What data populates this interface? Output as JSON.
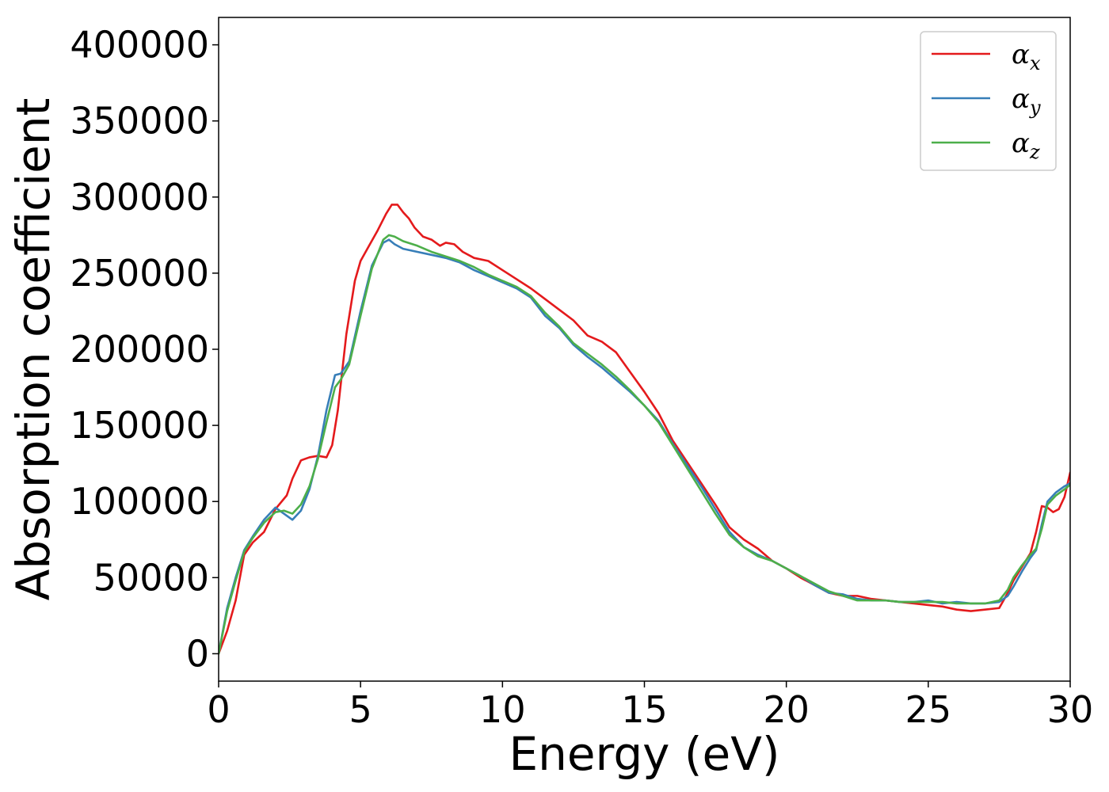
{
  "chart_data": {
    "type": "line",
    "xlabel": "Energy (eV)",
    "ylabel": "Absorption coefficient",
    "xlim": [
      0,
      30
    ],
    "ylim": [
      -18000,
      418000
    ],
    "xticks": [
      0,
      5,
      10,
      15,
      20,
      25,
      30
    ],
    "xtick_labels": [
      "0",
      "5",
      "10",
      "15",
      "20",
      "25",
      "30"
    ],
    "yticks": [
      0,
      50000,
      100000,
      150000,
      200000,
      250000,
      300000,
      350000,
      400000
    ],
    "ytick_labels": [
      "0",
      "50000",
      "100000",
      "150000",
      "200000",
      "250000",
      "300000",
      "350000",
      "400000"
    ],
    "grid": false,
    "legend_position": "top-right",
    "series": [
      {
        "name": "α_x",
        "name_base": "α",
        "name_sub": "x",
        "color": "#e41a1c",
        "x": [
          0,
          0.3,
          0.6,
          0.9,
          1.2,
          1.6,
          2.0,
          2.4,
          2.6,
          2.9,
          3.2,
          3.5,
          3.8,
          4.0,
          4.2,
          4.5,
          4.8,
          5.0,
          5.3,
          5.6,
          5.9,
          6.1,
          6.3,
          6.5,
          6.7,
          6.9,
          7.2,
          7.5,
          7.8,
          8.0,
          8.3,
          8.6,
          9.0,
          9.5,
          10.0,
          10.5,
          11.0,
          11.5,
          12.0,
          12.5,
          13.0,
          13.5,
          14.0,
          14.5,
          15.0,
          15.5,
          16.0,
          16.5,
          17.0,
          17.5,
          18.0,
          18.5,
          19.0,
          19.5,
          20.0,
          20.5,
          21.0,
          21.5,
          22.0,
          22.5,
          23.0,
          23.5,
          24.0,
          24.5,
          25.0,
          25.5,
          26.0,
          26.5,
          27.0,
          27.5,
          27.8,
          28.0,
          28.3,
          28.6,
          28.8,
          29.0,
          29.2,
          29.4,
          29.6,
          29.8,
          30.0
        ],
        "y": [
          0,
          15000,
          35000,
          65000,
          73000,
          80000,
          95000,
          104000,
          115000,
          127000,
          129000,
          130000,
          129000,
          137000,
          160000,
          210000,
          245000,
          258000,
          268000,
          278000,
          289000,
          295000,
          295000,
          290000,
          286000,
          280000,
          274000,
          272000,
          268000,
          270000,
          269000,
          264000,
          260000,
          258000,
          252000,
          246000,
          240000,
          233000,
          226000,
          219000,
          209000,
          205000,
          198000,
          185000,
          172000,
          158000,
          140000,
          126000,
          112000,
          98000,
          83000,
          75000,
          69000,
          61000,
          56000,
          50000,
          45000,
          40000,
          38000,
          38000,
          36000,
          35000,
          34000,
          33000,
          32000,
          31000,
          29000,
          28000,
          29000,
          30000,
          40000,
          48000,
          57000,
          66000,
          80000,
          97000,
          96000,
          93000,
          95000,
          103000,
          119000
        ]
      },
      {
        "name": "α_y",
        "name_base": "α",
        "name_sub": "y",
        "color": "#377eb8",
        "x": [
          0,
          0.3,
          0.6,
          0.9,
          1.2,
          1.6,
          2.0,
          2.3,
          2.6,
          2.9,
          3.2,
          3.5,
          3.8,
          4.1,
          4.3,
          4.6,
          5.0,
          5.4,
          5.8,
          6.0,
          6.2,
          6.5,
          7.0,
          7.5,
          8.0,
          8.5,
          9.0,
          9.5,
          10.0,
          10.5,
          11.0,
          11.5,
          12.0,
          12.5,
          13.0,
          13.5,
          14.0,
          14.5,
          15.0,
          15.5,
          16.0,
          16.5,
          17.0,
          17.5,
          18.0,
          18.5,
          19.0,
          19.5,
          20.0,
          20.5,
          21.0,
          21.5,
          22.0,
          22.5,
          23.0,
          23.5,
          24.0,
          24.5,
          25.0,
          25.5,
          26.0,
          26.5,
          27.0,
          27.5,
          27.8,
          28.0,
          28.3,
          28.6,
          28.8,
          29.0,
          29.2,
          29.5,
          29.8,
          30.0
        ],
        "y": [
          0,
          30000,
          50000,
          68000,
          77000,
          88000,
          96000,
          92000,
          88000,
          94000,
          108000,
          130000,
          160000,
          183000,
          184000,
          192000,
          225000,
          255000,
          270000,
          272000,
          269000,
          266000,
          264000,
          262000,
          260000,
          257000,
          252000,
          248000,
          244000,
          240000,
          234000,
          222000,
          214000,
          203000,
          195000,
          188000,
          180000,
          172000,
          163000,
          153000,
          138000,
          124000,
          110000,
          95000,
          80000,
          70000,
          65000,
          61000,
          56000,
          51000,
          45000,
          40000,
          39000,
          36000,
          35000,
          35000,
          34000,
          34000,
          35000,
          33000,
          34000,
          33000,
          33000,
          34000,
          38000,
          44000,
          54000,
          63000,
          68000,
          85000,
          100000,
          106000,
          110000,
          112000
        ]
      },
      {
        "name": "α_z",
        "name_base": "α",
        "name_sub": "z",
        "color": "#4daf4a",
        "x": [
          0,
          0.3,
          0.6,
          0.9,
          1.2,
          1.6,
          2.0,
          2.3,
          2.6,
          2.9,
          3.2,
          3.5,
          3.8,
          4.1,
          4.3,
          4.6,
          5.0,
          5.4,
          5.8,
          6.0,
          6.2,
          6.5,
          7.0,
          7.5,
          8.0,
          8.5,
          9.0,
          9.5,
          10.0,
          10.5,
          11.0,
          11.5,
          12.0,
          12.5,
          13.0,
          13.5,
          14.0,
          14.5,
          15.0,
          15.5,
          16.0,
          16.5,
          17.0,
          17.5,
          18.0,
          18.5,
          19.0,
          19.5,
          20.0,
          20.5,
          21.0,
          21.5,
          22.0,
          22.5,
          23.0,
          23.5,
          24.0,
          24.5,
          25.0,
          25.5,
          26.0,
          26.5,
          27.0,
          27.5,
          27.8,
          28.0,
          28.3,
          28.6,
          28.8,
          29.0,
          29.2,
          29.5,
          29.8,
          30.0
        ],
        "y": [
          0,
          28000,
          48000,
          67000,
          76000,
          86000,
          93000,
          94000,
          92000,
          98000,
          110000,
          128000,
          152000,
          175000,
          180000,
          190000,
          222000,
          253000,
          272000,
          275000,
          274000,
          271000,
          268000,
          264000,
          261000,
          258000,
          254000,
          249000,
          245000,
          241000,
          235000,
          224000,
          215000,
          204000,
          197000,
          190000,
          182000,
          173000,
          163000,
          152000,
          137000,
          122000,
          107000,
          92000,
          78000,
          70000,
          64000,
          61000,
          56000,
          51000,
          46000,
          41000,
          38000,
          35000,
          35000,
          35000,
          34000,
          34000,
          34000,
          34000,
          33000,
          33000,
          33000,
          35000,
          42000,
          50000,
          58000,
          65000,
          69000,
          82000,
          98000,
          104000,
          108000,
          111000
        ]
      }
    ]
  }
}
